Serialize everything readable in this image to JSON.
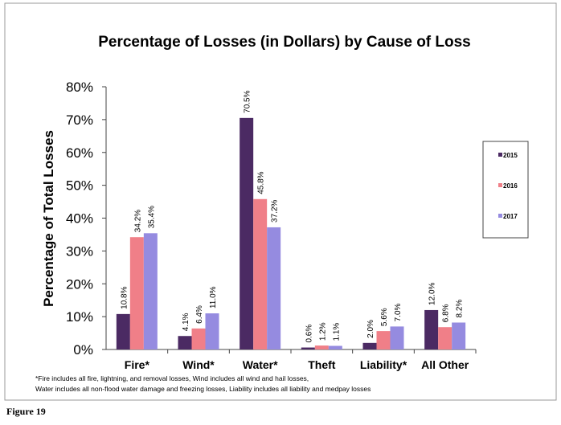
{
  "chart_data": {
    "type": "bar",
    "title": "Percentage of Losses (in Dollars) by Cause of Loss",
    "ylabel": "Percentage of Total Losses",
    "xlabel": "",
    "ylim": [
      0,
      80
    ],
    "yticks": [
      "0%",
      "10%",
      "20%",
      "30%",
      "40%",
      "50%",
      "60%",
      "70%",
      "80%"
    ],
    "categories": [
      "Fire*",
      "Wind*",
      "Water*",
      "Theft",
      "Liability*",
      "All Other"
    ],
    "series": [
      {
        "name": "2015",
        "color": "#4b2a63",
        "values": [
          10.8,
          4.1,
          70.5,
          0.6,
          2.0,
          12.0
        ],
        "labels": [
          "10.8%",
          "4.1%",
          "70.5%",
          "0.6%",
          "2.0%",
          "12.0%"
        ]
      },
      {
        "name": "2016",
        "color": "#f07f88",
        "values": [
          34.2,
          6.4,
          45.8,
          1.2,
          5.6,
          6.8
        ],
        "labels": [
          "34.2%",
          "6.4%",
          "45.8%",
          "1.2%",
          "5.6%",
          "6.8%"
        ]
      },
      {
        "name": "2017",
        "color": "#958be0",
        "values": [
          35.4,
          11.0,
          37.2,
          1.1,
          7.0,
          8.2
        ],
        "labels": [
          "35.4%",
          "11.0%",
          "37.2%",
          "1.1%",
          "7.0%",
          "8.2%"
        ]
      }
    ],
    "legend_position": "right",
    "grid": false,
    "footnote": [
      "*Fire includes  all fire, lightning, and removal losses, Wind includes all wind and hail losses,",
      "Water includes all non-flood water damage and freezing losses, Liability  includes all liability and medpay  losses"
    ]
  },
  "caption": "Figure 19"
}
